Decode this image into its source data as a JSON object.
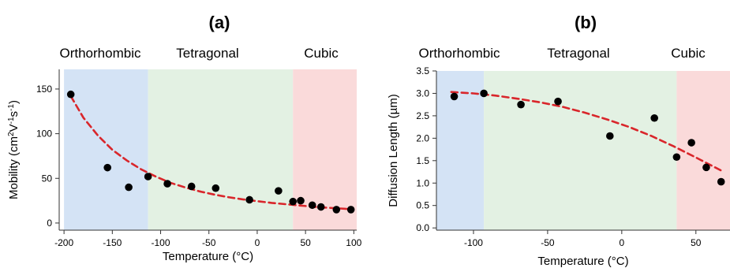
{
  "chart_data": [
    {
      "type": "scatter",
      "panel_label": "(a)",
      "phase_labels": [
        "Orthorhombic",
        "Tetragonal",
        "Cubic"
      ],
      "phases": [
        {
          "name": "Orthorhombic",
          "from": -200,
          "to": -113,
          "color": "#d4e3f5"
        },
        {
          "name": "Tetragonal",
          "from": -113,
          "to": 37,
          "color": "#e3f1e3"
        },
        {
          "name": "Cubic",
          "from": 37,
          "to": 103,
          "color": "#fadada"
        }
      ],
      "xlabel": "Temperature (°C)",
      "ylabel_parts": [
        "Mobility (cm",
        "2",
        "V",
        "-1",
        "s",
        "-1",
        ")"
      ],
      "xlim": [
        -205,
        103
      ],
      "ylim": [
        -8,
        172
      ],
      "xticks": [
        -200,
        -150,
        -100,
        -50,
        0,
        50,
        100
      ],
      "yticks": [
        0,
        50,
        100,
        150
      ],
      "series": [
        {
          "x": [
            -193,
            -155,
            -133,
            -113,
            -93,
            -68,
            -43,
            -8,
            22,
            37,
            45,
            57,
            66,
            82,
            97
          ],
          "y": [
            144,
            62,
            40,
            52,
            44,
            41,
            39,
            26,
            36,
            24,
            25,
            20,
            18,
            15,
            15
          ]
        }
      ],
      "fit": {
        "x": [
          -193,
          -180,
          -165,
          -150,
          -135,
          -120,
          -105,
          -90,
          -75,
          -60,
          -45,
          -30,
          -15,
          0,
          15,
          30,
          45,
          60,
          75,
          90,
          97
        ],
        "y": [
          142,
          118,
          98,
          82,
          70,
          60,
          52,
          45,
          40,
          35.5,
          32,
          29,
          26.5,
          24.5,
          22.5,
          21,
          19.5,
          18,
          17,
          16,
          15.5
        ]
      },
      "grid": false,
      "colors": {
        "points": "#000000",
        "fit": "#d9262b"
      }
    },
    {
      "type": "scatter",
      "panel_label": "(b)",
      "phase_labels": [
        "Orthorhombic",
        "Tetragonal",
        "Cubic"
      ],
      "phases": [
        {
          "name": "Orthorhombic",
          "from": -125,
          "to": -93,
          "color": "#d4e3f5"
        },
        {
          "name": "Tetragonal",
          "from": -93,
          "to": 37,
          "color": "#e3f1e3"
        },
        {
          "name": "Cubic",
          "from": 37,
          "to": 73,
          "color": "#fadada"
        }
      ],
      "xlabel": "Temperature (°C)",
      "ylabel": "Diffusion Length (µm)",
      "xlim": [
        -125,
        73
      ],
      "ylim": [
        -0.05,
        3.5
      ],
      "xticks": [
        -100,
        -50,
        0,
        50
      ],
      "yticks": [
        0.0,
        0.5,
        1.0,
        1.5,
        2.0,
        2.5,
        3.0,
        3.5
      ],
      "series": [
        {
          "x": [
            -113,
            -93,
            -68,
            -43,
            -8,
            22,
            37,
            47,
            57,
            67
          ],
          "y": [
            2.93,
            3.0,
            2.75,
            2.82,
            2.05,
            2.45,
            1.58,
            1.9,
            1.35,
            1.03
          ]
        }
      ],
      "fit": {
        "x": [
          -115,
          -100,
          -85,
          -70,
          -55,
          -40,
          -25,
          -10,
          5,
          20,
          35,
          50,
          67
        ],
        "y": [
          3.03,
          3.0,
          2.95,
          2.88,
          2.8,
          2.7,
          2.57,
          2.42,
          2.25,
          2.05,
          1.82,
          1.57,
          1.28
        ]
      },
      "grid": false,
      "colors": {
        "points": "#000000",
        "fit": "#d9262b"
      }
    }
  ]
}
